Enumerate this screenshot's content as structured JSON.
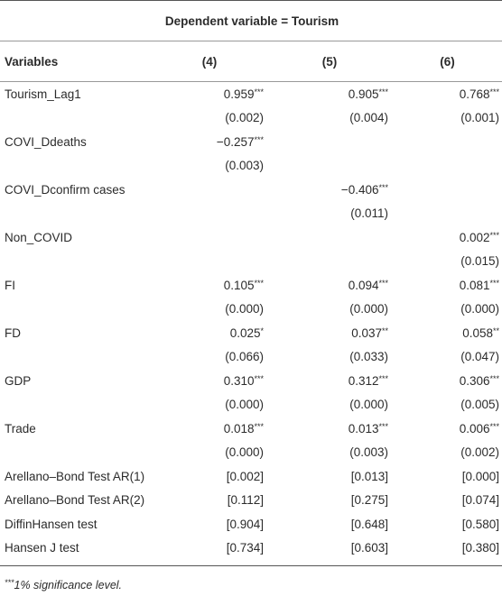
{
  "table": {
    "title": "Dependent variable = Tourism",
    "header": [
      "Variables",
      "(4)",
      "(5)",
      "(6)"
    ],
    "rows": [
      [
        "Tourism_Lag1",
        "0.959***",
        "0.905***",
        "0.768***"
      ],
      [
        null,
        "(0.002)",
        "(0.004)",
        "(0.001)"
      ],
      [
        "COVI_Ddeaths",
        "−0.257***",
        null,
        null
      ],
      [
        null,
        "(0.003)",
        null,
        null
      ],
      [
        "COVI_Dconfirm cases",
        null,
        "−0.406***",
        null
      ],
      [
        null,
        null,
        "(0.011)",
        null
      ],
      [
        "Non_COVID",
        null,
        null,
        "0.002***"
      ],
      [
        null,
        null,
        null,
        "(0.015)"
      ],
      [
        "FI",
        "0.105***",
        "0.094***",
        "0.081***"
      ],
      [
        null,
        "(0.000)",
        "(0.000)",
        "(0.000)"
      ],
      [
        "FD",
        "0.025*",
        "0.037**",
        "0.058**"
      ],
      [
        null,
        "(0.066)",
        "(0.033)",
        "(0.047)"
      ],
      [
        "GDP",
        "0.310***",
        "0.312***",
        "0.306***"
      ],
      [
        null,
        "(0.000)",
        "(0.000)",
        "(0.005)"
      ],
      [
        "Trade",
        "0.018***",
        "0.013***",
        "0.006***"
      ],
      [
        null,
        "(0.000)",
        "(0.003)",
        "(0.002)"
      ],
      [
        "Arellano–Bond Test AR(1)",
        "[0.002]",
        "[0.013]",
        "[0.000]"
      ],
      [
        "Arellano–Bond Test AR(2)",
        "[0.112]",
        "[0.275]",
        "[0.074]"
      ],
      [
        "DiffinHansen test",
        "[0.904]",
        "[0.648]",
        "[0.580]"
      ],
      [
        "Hansen J test",
        "[0.734]",
        "[0.603]",
        "[0.380]"
      ]
    ]
  },
  "footnote": "***1% significance level."
}
